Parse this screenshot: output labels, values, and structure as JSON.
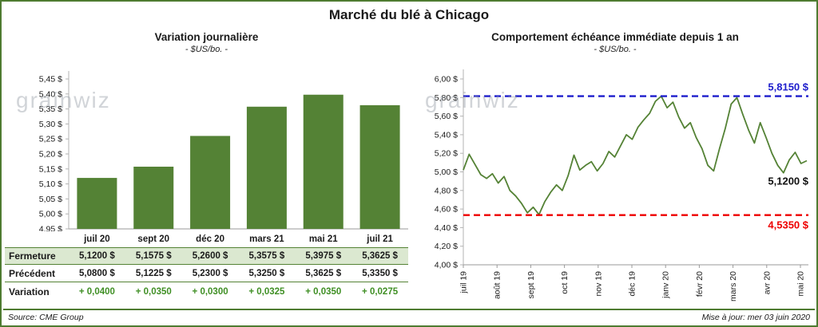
{
  "header": {
    "title": "Marché du blé à Chicago"
  },
  "watermark": "grainwiz",
  "footer": {
    "source": "Source: CME Group",
    "updated": "Mise à jour: mer 03 juin 2020"
  },
  "colors": {
    "frame_green": "#4e7b31",
    "bar_green": "#548235",
    "variation_green": "#3f8f24",
    "high_blue": "#1d1dcc",
    "low_red": "#ee0000",
    "fermeture_bg": "#dbe8d0"
  },
  "table": {
    "rows": [
      {
        "label": "Fermeture",
        "values": [
          "5,1200 $",
          "5,1575 $",
          "5,2600 $",
          "5,3575 $",
          "5,3975 $",
          "5,3625 $"
        ]
      },
      {
        "label": "Précédent",
        "values": [
          "5,0800 $",
          "5,1225 $",
          "5,2300 $",
          "5,3250 $",
          "5,3625 $",
          "5,3350 $"
        ]
      },
      {
        "label": "Variation",
        "values": [
          "+ 0,0400",
          "+ 0,0350",
          "+ 0,0300",
          "+ 0,0325",
          "+ 0,0350",
          "+ 0,0275"
        ]
      }
    ]
  },
  "chart_data": [
    {
      "type": "bar",
      "title": "Variation journalière",
      "subtitle": "- $US/bo. -",
      "categories": [
        "juil 20",
        "sept 20",
        "déc 20",
        "mars 21",
        "mai 21",
        "juil 21"
      ],
      "values": [
        5.12,
        5.1575,
        5.26,
        5.3575,
        5.3975,
        5.3625
      ],
      "ylim": [
        4.95,
        5.45
      ],
      "ytick_step": 0.05,
      "ytick_labels": [
        "5,45 $",
        "5,40 $",
        "5,35 $",
        "5,30 $",
        "5,25 $",
        "5,20 $",
        "5,15 $",
        "5,10 $",
        "5,05 $",
        "5,00 $",
        "4,95 $"
      ],
      "bar_color": "#548235",
      "grid": false,
      "legend": false
    },
    {
      "type": "line",
      "title": "Comportement échéance immédiate depuis 1 an",
      "subtitle": "- $US/bo. -",
      "x_labels": [
        "juil 19",
        "août 19",
        "sept 19",
        "oct 19",
        "nov 19",
        "déc 19",
        "janv 20",
        "févr 20",
        "mars 20",
        "avr 20",
        "mai 20"
      ],
      "series": [
        {
          "name": "échéance immédiate",
          "y": [
            5.02,
            5.19,
            5.08,
            4.97,
            4.93,
            4.98,
            4.88,
            4.95,
            4.8,
            4.74,
            4.66,
            4.56,
            4.62,
            4.54,
            4.68,
            4.78,
            4.86,
            4.8,
            4.96,
            5.18,
            5.02,
            5.07,
            5.11,
            5.01,
            5.09,
            5.22,
            5.16,
            5.28,
            5.4,
            5.35,
            5.48,
            5.56,
            5.63,
            5.76,
            5.815,
            5.69,
            5.75,
            5.59,
            5.47,
            5.53,
            5.37,
            5.25,
            5.07,
            5.01,
            5.25,
            5.47,
            5.73,
            5.8,
            5.62,
            5.45,
            5.31,
            5.53,
            5.37,
            5.2,
            5.07,
            4.99,
            5.13,
            5.21,
            5.09,
            5.12
          ]
        }
      ],
      "ylim": [
        4.0,
        6.0
      ],
      "ytick_step": 0.2,
      "ytick_labels": [
        "6,00 $",
        "5,80 $",
        "5,60 $",
        "5,40 $",
        "5,20 $",
        "5,00 $",
        "4,80 $",
        "4,60 $",
        "4,40 $",
        "4,20 $",
        "4,00 $"
      ],
      "line_color": "#548235",
      "high_line": {
        "value": 5.815,
        "label": "5,8150 $",
        "color": "#1d1dcc"
      },
      "low_line": {
        "value": 4.535,
        "label": "4,5350 $",
        "color": "#ee0000"
      },
      "end_label": {
        "value": 5.12,
        "label": "5,1200 $"
      },
      "grid": false,
      "legend": false
    }
  ]
}
